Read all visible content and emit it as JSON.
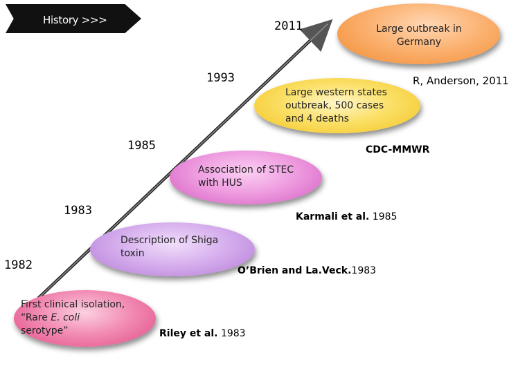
{
  "header": {
    "title": "History >>>"
  },
  "events": [
    {
      "year": "1982",
      "lines": [
        "First clinical isolation,",
        "“Rare ",
        "E. coli",
        "serotype”"
      ],
      "color": "#e8508a",
      "reference": {
        "bold": "Riley et al.",
        "rest": " 1983"
      }
    },
    {
      "year": "1983",
      "lines": [
        "Description of Shiga",
        "toxin"
      ],
      "color": "#c48fe0",
      "reference": {
        "bold": "O’Brien and La.Veck.",
        "rest": "1983"
      }
    },
    {
      "year": "1985",
      "lines": [
        "Association of STEC",
        "with HUS"
      ],
      "color": "#e27ad0",
      "reference": {
        "bold": "Karmali et al.",
        "rest": " 1985"
      }
    },
    {
      "year": "1993",
      "lines": [
        "Large western states",
        "outbreak, 500 cases",
        "and 4 deaths"
      ],
      "color": "#f5d23a",
      "reference": {
        "bold": "CDC-MMWR",
        "rest": ""
      }
    },
    {
      "year": "2011",
      "lines": [
        "Large outbreak in",
        "Germany"
      ],
      "color": "#f7a04a",
      "reference": {
        "bold": "",
        "rest": "R, Anderson, 2011"
      }
    }
  ]
}
